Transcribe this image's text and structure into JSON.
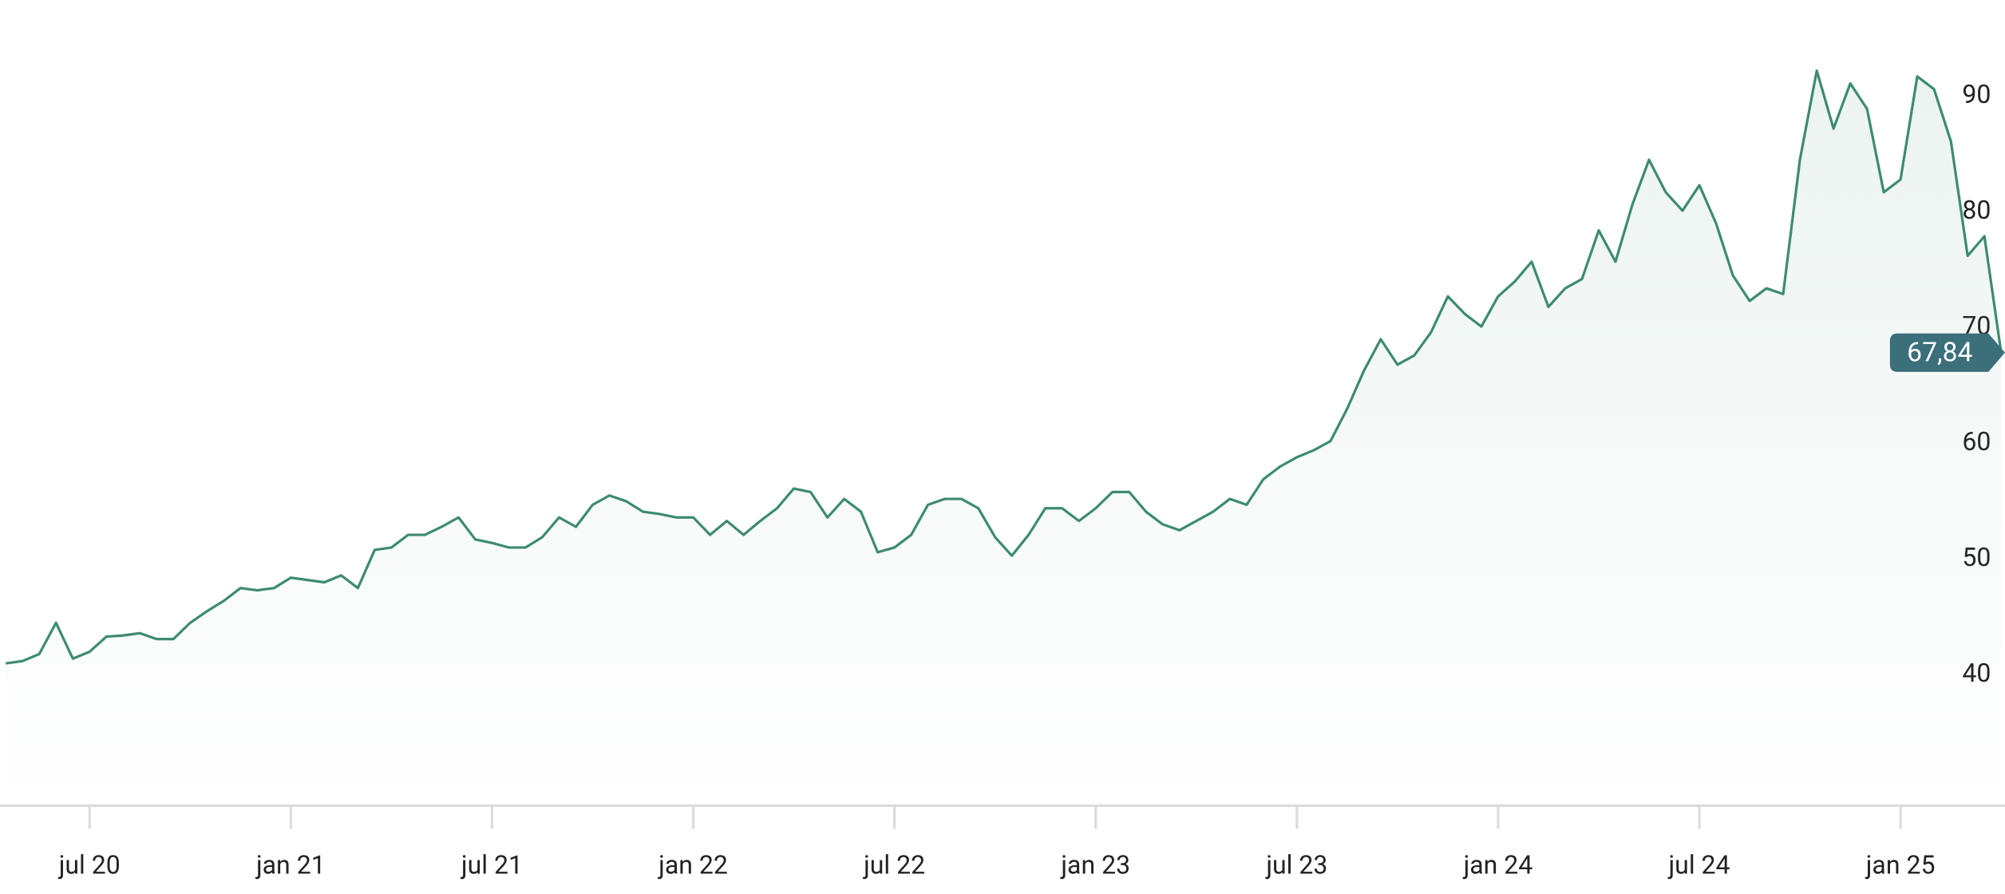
{
  "chart_data": {
    "type": "line",
    "values": [
      41,
      41.2,
      41.8,
      44.5,
      41.4,
      42,
      43.3,
      43.4,
      43.6,
      43.1,
      43.1,
      44.5,
      45.5,
      46.4,
      47.5,
      47.3,
      47.5,
      48.4,
      48.2,
      48,
      48.6,
      47.5,
      50.8,
      51,
      52.1,
      52.1,
      52.8,
      53.6,
      51.7,
      51.4,
      51,
      51,
      51.9,
      53.6,
      52.8,
      54.7,
      55.5,
      55,
      54.1,
      53.9,
      53.6,
      53.6,
      52.1,
      53.3,
      52.1,
      53.3,
      54.4,
      56.1,
      55.8,
      53.6,
      55.2,
      54.1,
      50.6,
      51,
      52.1,
      54.7,
      55.2,
      55.2,
      54.4,
      51.9,
      50.3,
      52.1,
      54.4,
      54.4,
      53.3,
      54.4,
      55.8,
      55.8,
      54.1,
      53,
      52.5,
      53.3,
      54.1,
      55.2,
      54.7,
      56.9,
      58,
      58.8,
      59.4,
      60.2,
      63,
      66.3,
      69,
      66.8,
      67.6,
      69.6,
      72.7,
      71.2,
      70.1,
      72.7,
      74,
      75.7,
      71.8,
      73.4,
      74.2,
      78.4,
      75.7,
      80.6,
      84.5,
      81.7,
      80.1,
      82.3,
      79,
      74.5,
      72.3,
      73.4,
      72.9,
      84.5,
      92.2,
      87.2,
      91.1,
      88.9,
      81.7,
      82.8,
      91.7,
      90.6,
      86.1,
      76.2,
      77.9,
      67.84
    ],
    "value_labels": [
      null,
      null,
      null,
      null,
      null,
      null,
      null,
      null,
      null,
      null,
      null,
      null,
      null,
      null,
      null,
      null,
      null,
      null,
      null,
      null,
      null,
      null,
      null,
      null,
      null,
      null,
      null,
      null,
      null,
      null,
      null,
      null,
      null,
      null,
      null,
      null,
      null,
      null,
      null,
      null,
      null,
      null,
      null,
      null,
      null,
      null,
      null,
      null,
      null,
      null,
      null,
      null,
      null,
      null,
      null,
      null,
      null,
      null,
      null,
      null,
      null,
      null,
      null,
      null,
      null,
      null,
      null,
      null,
      null,
      null,
      null,
      null,
      null,
      null,
      null,
      null,
      null,
      null,
      null,
      null,
      null,
      null,
      null,
      null,
      null,
      null,
      null,
      null,
      null,
      null,
      null,
      null,
      null,
      null,
      null,
      null,
      null,
      null,
      null,
      null,
      null,
      null,
      null,
      null,
      null,
      null,
      null,
      null,
      null,
      null,
      null,
      null,
      null,
      null,
      null,
      null,
      null,
      null,
      null,
      "67,84"
    ],
    "color": "#3d8b6e",
    "xlim": [
      0,
      119
    ],
    "xticks": [
      {
        "value": 5,
        "label": "jul 20"
      },
      {
        "value": 17,
        "label": "jan 21"
      },
      {
        "value": 29,
        "label": "jul 21"
      },
      {
        "value": 41,
        "label": "jan 22"
      },
      {
        "value": 53,
        "label": "jul 22"
      },
      {
        "value": 65,
        "label": "jan 23"
      },
      {
        "value": 77,
        "label": "jul 23"
      },
      {
        "value": 89,
        "label": "jan 24"
      },
      {
        "value": 101,
        "label": "jul 24"
      },
      {
        "value": 113,
        "label": "jan 25"
      }
    ],
    "ylim": [
      28.7,
      98.3
    ],
    "yticks": [
      40,
      50,
      60,
      70,
      80,
      90
    ]
  }
}
